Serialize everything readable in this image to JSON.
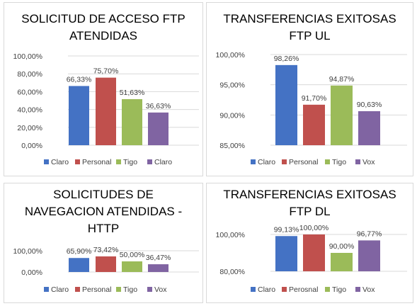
{
  "chart_data": [
    {
      "type": "bar",
      "title_lines": [
        "SOLICITUD DE ACCESO FTP",
        "ATENDIDAS"
      ],
      "ylim": [
        0,
        100
      ],
      "yticks": [
        0,
        20,
        40,
        60,
        80,
        100
      ],
      "tick_labels": [
        "0,00%",
        "20,00%",
        "40,00%",
        "60,00%",
        "80,00%",
        "100,00%"
      ],
      "grid": true,
      "legend": "bottom",
      "series": [
        {
          "name": "Claro",
          "value": 66.33,
          "label": "66,33%",
          "color": "#4472c4"
        },
        {
          "name": "Personal",
          "value": 75.7,
          "label": "75,70%",
          "color": "#c0504d"
        },
        {
          "name": "Tigo",
          "value": 51.63,
          "label": "51,63%",
          "color": "#9bbb59"
        },
        {
          "name": "Claro",
          "value": 36.63,
          "label": "36,63%",
          "color": "#8064a2"
        }
      ]
    },
    {
      "type": "bar",
      "title_lines": [
        "TRANSFERENCIAS EXITOSAS",
        "FTP UL"
      ],
      "ylim": [
        85,
        100
      ],
      "yticks": [
        85,
        90,
        95,
        100
      ],
      "tick_labels": [
        "85,00%",
        "90,00%",
        "95,00%",
        "100,00%"
      ],
      "grid": true,
      "legend": "bottom",
      "series": [
        {
          "name": "Claro",
          "value": 98.26,
          "label": "98,26%",
          "color": "#4472c4"
        },
        {
          "name": "Personal",
          "value": 91.7,
          "label": "91,70%",
          "color": "#c0504d"
        },
        {
          "name": "Tigo",
          "value": 94.87,
          "label": "94,87%",
          "color": "#9bbb59"
        },
        {
          "name": "Vox",
          "value": 90.63,
          "label": "90,63%",
          "color": "#8064a2"
        }
      ]
    },
    {
      "type": "bar",
      "title_lines": [
        "SOLICITUDES DE",
        "NAVEGACION ATENDIDAS -",
        "HTTP"
      ],
      "ylim": [
        0,
        100
      ],
      "yticks": [
        0,
        100
      ],
      "tick_labels": [
        "0,00%",
        "100,00%"
      ],
      "grid": true,
      "legend": "bottom",
      "series": [
        {
          "name": "Claro",
          "value": 65.9,
          "label": "65,90%",
          "color": "#4472c4"
        },
        {
          "name": "Personal",
          "value": 73.42,
          "label": "73,42%",
          "color": "#c0504d"
        },
        {
          "name": "Tigo",
          "value": 50.0,
          "label": "50,00%",
          "color": "#9bbb59"
        },
        {
          "name": "Vox",
          "value": 36.47,
          "label": "36,47%",
          "color": "#8064a2"
        }
      ]
    },
    {
      "type": "bar",
      "title_lines": [
        "TRANSFERENCIAS EXITOSAS",
        "FTP DL"
      ],
      "ylim": [
        80,
        100
      ],
      "yticks": [
        80,
        100
      ],
      "tick_labels": [
        "80,00%",
        "100,00%"
      ],
      "grid": true,
      "legend": "bottom",
      "series": [
        {
          "name": "Claro",
          "value": 99.13,
          "label": "99,13%",
          "color": "#4472c4"
        },
        {
          "name": "Perosnal",
          "value": 100.0,
          "label": "100,00%",
          "color": "#c0504d"
        },
        {
          "name": "Tigo",
          "value": 90.0,
          "label": "90,00%",
          "color": "#9bbb59"
        },
        {
          "name": "Vox",
          "value": 96.77,
          "label": "96,77%",
          "color": "#8064a2"
        }
      ]
    }
  ]
}
